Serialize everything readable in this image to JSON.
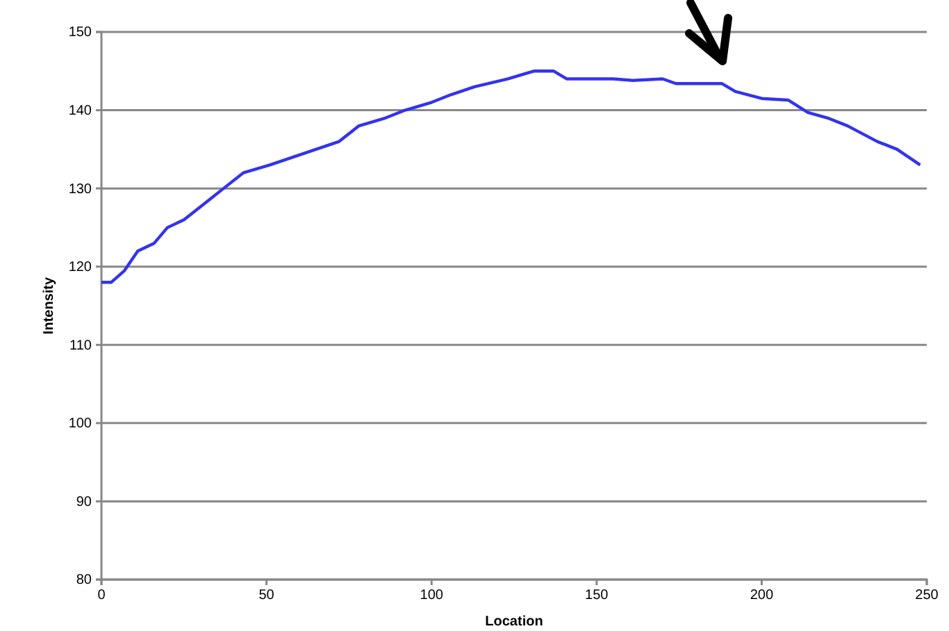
{
  "chart_data": {
    "type": "line",
    "xlabel": "Location",
    "ylabel": "Intensity",
    "x": [
      0,
      3,
      7,
      11,
      16,
      20,
      25,
      31,
      37,
      43,
      51,
      58,
      65,
      72,
      78,
      86,
      92,
      100,
      106,
      113,
      123,
      131,
      137,
      141,
      155,
      161,
      170,
      174,
      188,
      192,
      200,
      208,
      214,
      220,
      226,
      235,
      241,
      248
    ],
    "series": [
      {
        "color": "#3333ee",
        "values": [
          118,
          118,
          119.5,
          122,
          123,
          125,
          126,
          128,
          130,
          132,
          133,
          134,
          135,
          136,
          138,
          139,
          140,
          141,
          142,
          143,
          144,
          145,
          145,
          144,
          144,
          143.8,
          144,
          143.4,
          143.4,
          142.4,
          141.5,
          141.3,
          139.7,
          139,
          138,
          136,
          135,
          133
        ]
      }
    ],
    "xlim": [
      0,
      250
    ],
    "xticks": [
      0,
      50,
      100,
      150,
      200,
      250
    ],
    "ylim": [
      80,
      150
    ],
    "yticks": [
      80,
      90,
      100,
      110,
      120,
      130,
      140,
      150
    ],
    "grid": "y",
    "line_style": "solid",
    "marker": "none"
  }
}
